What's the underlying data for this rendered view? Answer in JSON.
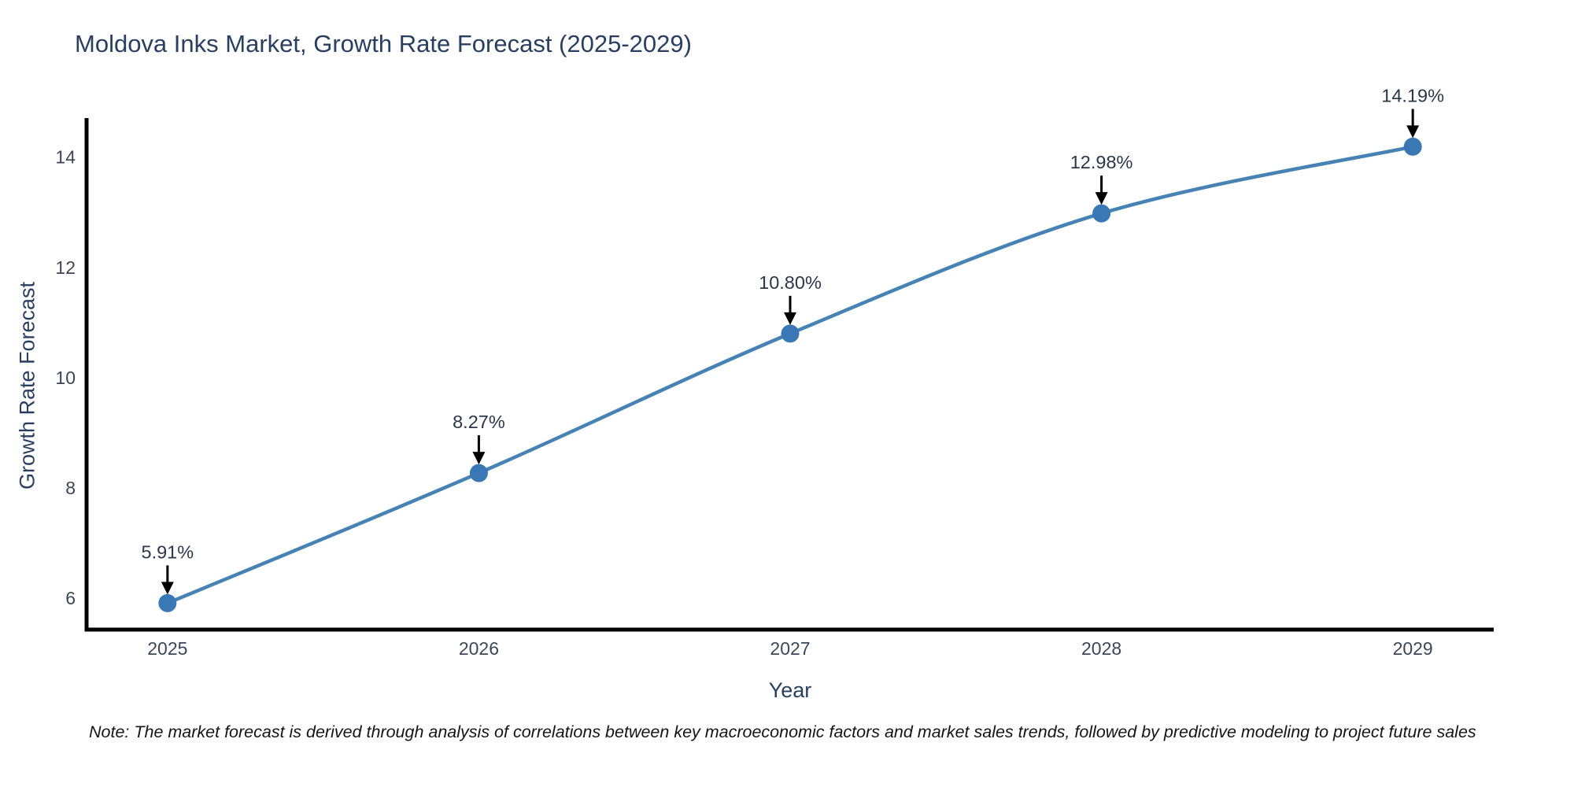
{
  "title": "Moldova Inks Market, Growth Rate Forecast (2025-2029)",
  "note": "Note: The market forecast is derived through analysis of correlations between key macroeconomic factors and market sales trends, followed by predictive modeling to project future sales",
  "chart_data": {
    "type": "line",
    "title": "Moldova Inks Market, Growth Rate Forecast (2025-2029)",
    "xlabel": "Year",
    "ylabel": "Growth Rate Forecast",
    "x": [
      2025,
      2026,
      2027,
      2028,
      2029
    ],
    "series": [
      {
        "name": "Growth Rate Forecast",
        "values": [
          5.91,
          8.27,
          10.8,
          12.98,
          14.19
        ]
      }
    ],
    "point_labels": [
      "5.91%",
      "8.27%",
      "10.80%",
      "12.98%",
      "14.19%"
    ],
    "xticks": [
      2025,
      2026,
      2027,
      2028,
      2029
    ],
    "xtick_labels": [
      "2025",
      "2026",
      "2027",
      "2028",
      "2029"
    ],
    "yticks": [
      6,
      8,
      10,
      12,
      14
    ],
    "ytick_labels": [
      "6",
      "8",
      "10",
      "12",
      "14"
    ],
    "xlim": [
      2024.74,
      2029.26
    ],
    "ylim": [
      5.43,
      14.71
    ],
    "grid": false,
    "legend": "none",
    "line_shape": "spline",
    "colors": {
      "line": "#4682b4",
      "marker": "#3a78b5",
      "annotation_text": "#2b3648",
      "annotation_arrow": "#000000",
      "axis_spine": "#000000",
      "tick_label": "#3d4656",
      "title": "#2a3f5f"
    }
  }
}
